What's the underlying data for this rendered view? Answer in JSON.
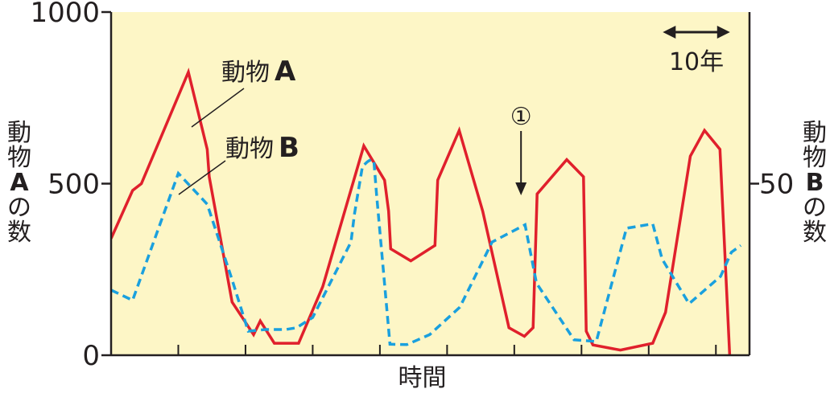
{
  "chart_data": {
    "type": "line",
    "plot_background": "#fdf6c6",
    "colors": {
      "animal_a": "#e0202c",
      "animal_b": "#1aa0de",
      "ink": "#231f20"
    },
    "x_label": "時間",
    "y_left": {
      "label_chars": [
        "動",
        "物",
        "A",
        "の",
        "数"
      ],
      "ticks": [
        "0",
        "500",
        "1000"
      ],
      "range": [
        0,
        1000
      ]
    },
    "y_right": {
      "label_chars": [
        "動",
        "物",
        "B",
        "の",
        "数"
      ],
      "ticks": [
        "50"
      ],
      "range": [
        0,
        100
      ]
    },
    "x_range": [
      0,
      95
    ],
    "x_ticks": [
      10,
      20,
      30,
      40,
      50,
      60,
      70,
      80,
      90
    ],
    "scale_bar": {
      "label": "10年",
      "years": 10
    },
    "annotations": {
      "animal_a": {
        "prefix": "動物",
        "letter": "A"
      },
      "animal_b": {
        "prefix": "動物",
        "letter": "B"
      },
      "marker": {
        "label": "①",
        "x": 61
      }
    },
    "series": [
      {
        "name": "動物A",
        "axis": "left",
        "x": [
          0,
          3.2,
          4.5,
          11.5,
          14.3,
          14.6,
          18,
          21.2,
          22.2,
          24.3,
          27.9,
          31.5,
          37.6,
          40.7,
          41.3,
          41.6,
          44.6,
          48.2,
          48.6,
          51.8,
          55.3,
          59.2,
          61.5,
          62.8,
          63.4,
          67.8,
          70.3,
          70.7,
          71.7,
          75.8,
          80.6,
          82.5,
          86.2,
          88.3,
          90.6,
          92.2
        ],
        "y": [
          340,
          480,
          500,
          825,
          600,
          520,
          155,
          60,
          100,
          35,
          35,
          200,
          610,
          510,
          420,
          310,
          275,
          320,
          510,
          655,
          420,
          80,
          55,
          80,
          470,
          570,
          520,
          70,
          30,
          15,
          35,
          125,
          580,
          655,
          600,
          -60
        ]
      },
      {
        "name": "動物B",
        "axis": "right",
        "x": [
          0,
          3.2,
          10,
          14.3,
          18,
          20.4,
          23,
          26,
          27.6,
          30,
          35.7,
          36.2,
          37.4,
          38.1,
          38.4,
          38.7,
          39.1,
          39.5,
          41.5,
          44,
          47.4,
          51.9,
          56.7,
          61.6,
          63.3,
          68.9,
          72.2,
          76.7,
          80.6,
          82,
          86,
          90.7,
          92.3,
          93.7
        ],
        "y": [
          19,
          16,
          53,
          44,
          22,
          7,
          7.5,
          7.5,
          8,
          11,
          33,
          41,
          55,
          56.3,
          56.7,
          57,
          56.7,
          47,
          3.2,
          3.1,
          6,
          14,
          33,
          38,
          21,
          4.5,
          4,
          37,
          38.3,
          28,
          15,
          23,
          30,
          32
        ]
      }
    ]
  }
}
